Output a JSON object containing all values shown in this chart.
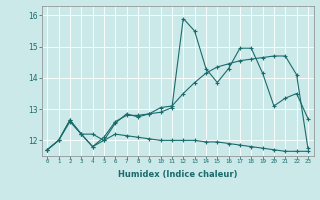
{
  "xlabel": "Humidex (Indice chaleur)",
  "ylabel": "",
  "xlim": [
    -0.5,
    23.5
  ],
  "ylim": [
    11.5,
    16.3
  ],
  "yticks": [
    12,
    13,
    14,
    15,
    16
  ],
  "xticks": [
    0,
    1,
    2,
    3,
    4,
    5,
    6,
    7,
    8,
    9,
    10,
    11,
    12,
    13,
    14,
    15,
    16,
    17,
    18,
    19,
    20,
    21,
    22,
    23
  ],
  "bg_color": "#cce9ea",
  "line_color": "#1a6b6b",
  "line1_x": [
    0,
    1,
    2,
    3,
    4,
    5,
    6,
    7,
    8,
    9,
    10,
    11,
    12,
    13,
    14,
    15,
    16,
    17,
    18,
    19,
    20,
    21,
    22,
    23
  ],
  "line1_y": [
    11.7,
    12.0,
    12.6,
    12.2,
    11.8,
    12.1,
    12.6,
    12.8,
    12.8,
    12.85,
    12.9,
    13.05,
    15.9,
    15.5,
    14.3,
    13.85,
    14.3,
    14.95,
    14.95,
    14.15,
    13.1,
    13.35,
    13.5,
    12.7
  ],
  "line2_x": [
    0,
    1,
    2,
    3,
    4,
    5,
    6,
    7,
    8,
    9,
    10,
    11,
    12,
    13,
    14,
    15,
    16,
    17,
    18,
    19,
    20,
    21,
    22,
    23
  ],
  "line2_y": [
    11.7,
    12.0,
    12.65,
    12.2,
    12.2,
    12.0,
    12.55,
    12.85,
    12.75,
    12.85,
    13.05,
    13.1,
    13.5,
    13.85,
    14.15,
    14.35,
    14.45,
    14.55,
    14.6,
    14.65,
    14.7,
    14.7,
    14.1,
    11.75
  ],
  "line3_x": [
    0,
    1,
    2,
    3,
    4,
    5,
    6,
    7,
    8,
    9,
    10,
    11,
    12,
    13,
    14,
    15,
    16,
    17,
    18,
    19,
    20,
    21,
    22,
    23
  ],
  "line3_y": [
    11.7,
    12.0,
    12.65,
    12.2,
    11.8,
    12.0,
    12.2,
    12.15,
    12.1,
    12.05,
    12.0,
    12.0,
    12.0,
    12.0,
    11.95,
    11.95,
    11.9,
    11.85,
    11.8,
    11.75,
    11.7,
    11.65,
    11.65,
    11.65
  ]
}
